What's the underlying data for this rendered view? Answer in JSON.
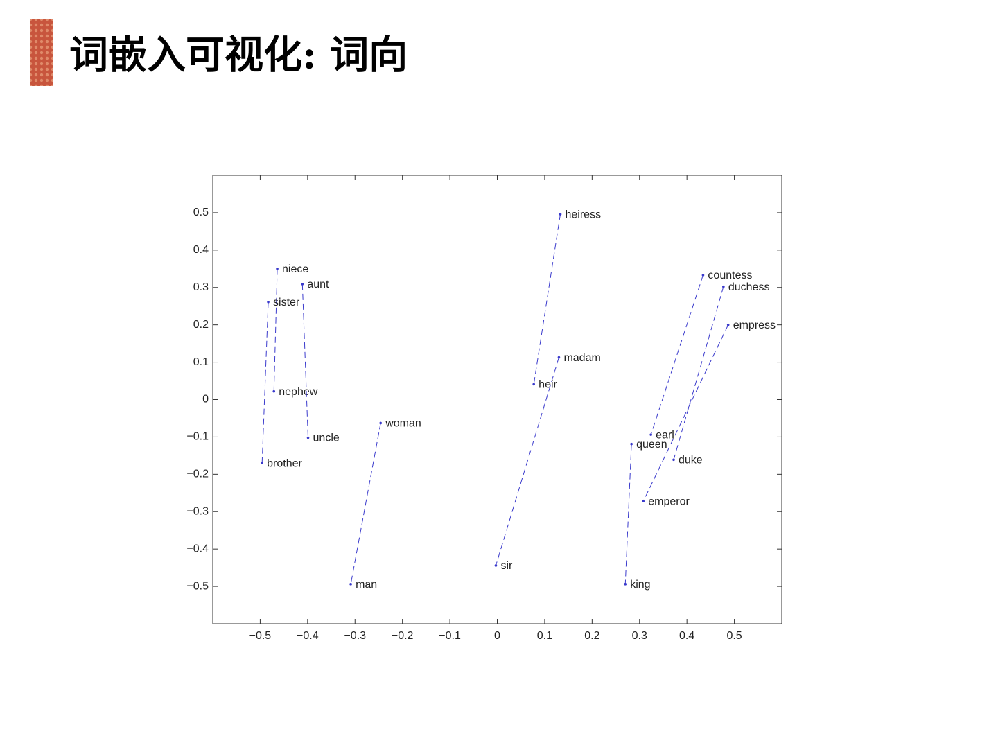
{
  "chart_data": {
    "type": "scatter",
    "title": "词嵌入可视化: 词向",
    "xlim": [
      -0.6,
      0.6
    ],
    "ylim": [
      -0.6,
      0.6
    ],
    "xticks": [
      {
        "value": -0.5,
        "label": "−0.5"
      },
      {
        "value": -0.4,
        "label": "−0.4"
      },
      {
        "value": -0.3,
        "label": "−0.3"
      },
      {
        "value": -0.2,
        "label": "−0.2"
      },
      {
        "value": -0.1,
        "label": "−0.1"
      },
      0,
      0.1,
      0.2,
      0.3,
      0.4,
      0.5
    ],
    "yticks": [
      {
        "value": -0.5,
        "label": "−0.5"
      },
      {
        "value": -0.4,
        "label": "−0.4"
      },
      {
        "value": -0.3,
        "label": "−0.3"
      },
      {
        "value": -0.2,
        "label": "−0.2"
      },
      {
        "value": -0.1,
        "label": "−0.1"
      },
      0,
      0.1,
      0.2,
      0.3,
      0.4,
      0.5
    ],
    "color": "#3a3acc",
    "series": [
      {
        "labels": [
          "heiress",
          "heir"
        ],
        "x": [
          0.133,
          0.077
        ],
        "values": [
          0.496,
          0.041
        ]
      },
      {
        "labels": [
          "madam",
          "sir"
        ],
        "x": [
          0.13,
          -0.003
        ],
        "values": [
          0.113,
          -0.444
        ]
      },
      {
        "labels": [
          "niece",
          "nephew"
        ],
        "x": [
          -0.464,
          -0.471
        ],
        "values": [
          0.35,
          0.022
        ]
      },
      {
        "labels": [
          "aunt",
          "uncle"
        ],
        "x": [
          -0.411,
          -0.399
        ],
        "values": [
          0.309,
          -0.102
        ]
      },
      {
        "labels": [
          "sister",
          "brother"
        ],
        "x": [
          -0.483,
          -0.496
        ],
        "values": [
          0.261,
          -0.17
        ]
      },
      {
        "labels": [
          "woman",
          "man"
        ],
        "x": [
          -0.246,
          -0.309
        ],
        "values": [
          -0.063,
          -0.494
        ]
      },
      {
        "labels": [
          "countess",
          "earl"
        ],
        "x": [
          0.434,
          0.324
        ],
        "values": [
          0.333,
          -0.094
        ]
      },
      {
        "labels": [
          "duchess",
          "duke"
        ],
        "x": [
          0.477,
          0.372
        ],
        "values": [
          0.302,
          -0.161
        ]
      },
      {
        "labels": [
          "empress",
          "emperor"
        ],
        "x": [
          0.487,
          0.308
        ],
        "values": [
          0.2,
          -0.272
        ]
      },
      {
        "labels": [
          "queen",
          "king"
        ],
        "x": [
          0.283,
          0.27
        ],
        "values": [
          -0.119,
          -0.494
        ]
      }
    ]
  }
}
